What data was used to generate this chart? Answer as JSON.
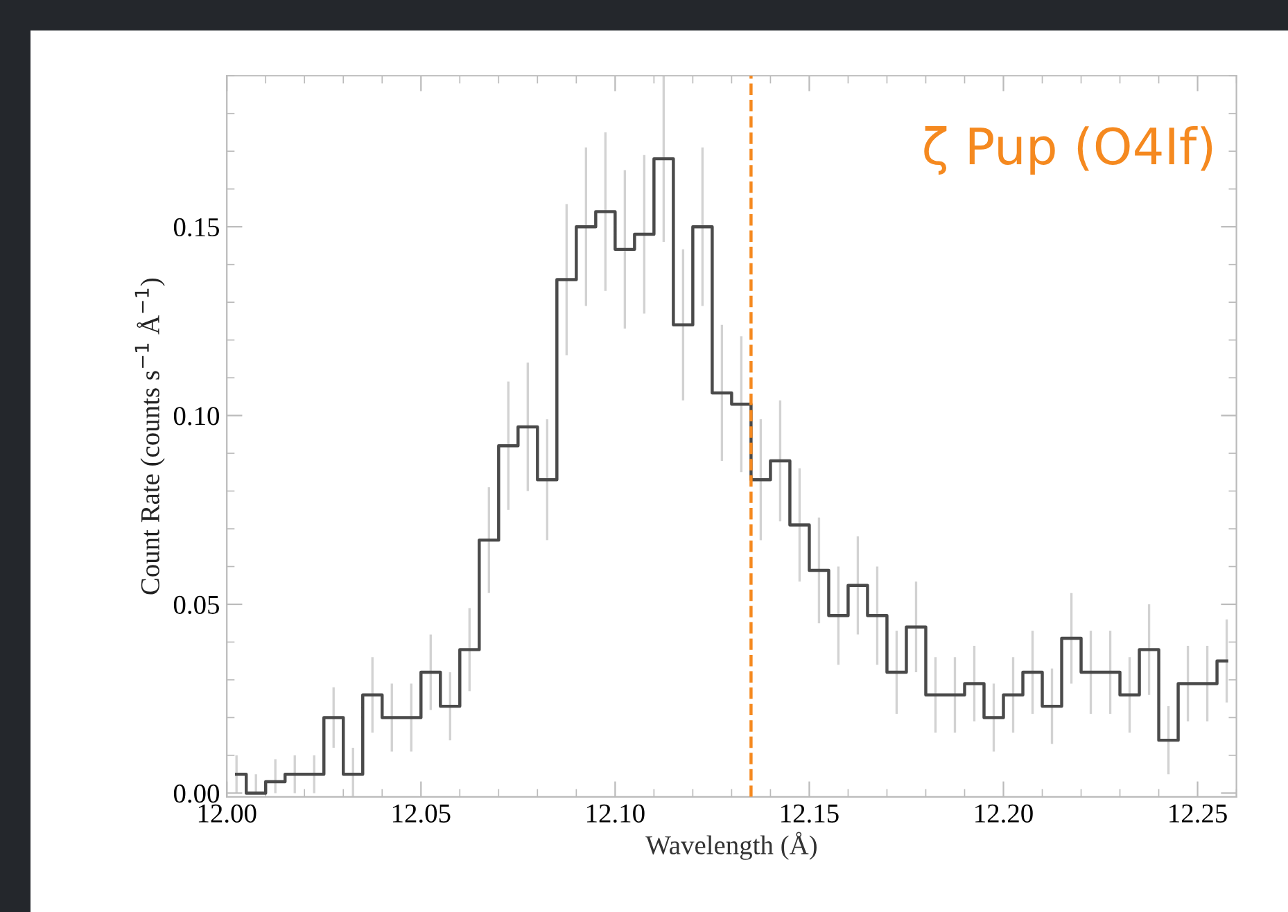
{
  "chart_data": {
    "type": "step",
    "xlabel": "Wavelength (Å)",
    "ylabel": "Count Rate (counts s$^{−1}$ Å$^{−1}$)",
    "x": [
      12.0025,
      12.0075,
      12.0125,
      12.0175,
      12.0225,
      12.0275,
      12.0325,
      12.0375,
      12.0425,
      12.0475,
      12.0525,
      12.0575,
      12.0625,
      12.0675,
      12.0725,
      12.0775,
      12.0825,
      12.0875,
      12.0925,
      12.0975,
      12.1025,
      12.1075,
      12.1125,
      12.1175,
      12.1225,
      12.1275,
      12.1325,
      12.1375,
      12.1425,
      12.1475,
      12.1525,
      12.1575,
      12.1625,
      12.1675,
      12.1725,
      12.1775,
      12.1825,
      12.1875,
      12.1925,
      12.1975,
      12.2025,
      12.2075,
      12.2125,
      12.2175,
      12.2225,
      12.2275,
      12.2325,
      12.2375,
      12.2425,
      12.2475,
      12.2525,
      12.2575
    ],
    "values": [
      0.005,
      0.0,
      0.003,
      0.005,
      0.005,
      0.02,
      0.005,
      0.026,
      0.02,
      0.02,
      0.032,
      0.023,
      0.038,
      0.067,
      0.092,
      0.097,
      0.083,
      0.136,
      0.15,
      0.154,
      0.144,
      0.148,
      0.168,
      0.124,
      0.15,
      0.106,
      0.103,
      0.083,
      0.088,
      0.071,
      0.059,
      0.047,
      0.055,
      0.047,
      0.032,
      0.044,
      0.026,
      0.026,
      0.029,
      0.02,
      0.026,
      0.032,
      0.023,
      0.041,
      0.032,
      0.032,
      0.026,
      0.038,
      0.014,
      0.029,
      0.029,
      0.035
    ],
    "errors": [
      [
        0.0,
        0.01
      ],
      [
        0.0,
        0.005
      ],
      [
        0.0,
        0.009
      ],
      0.005,
      0.005,
      0.008,
      0.007,
      0.01,
      0.009,
      0.009,
      0.01,
      0.009,
      0.011,
      0.014,
      0.017,
      0.017,
      0.016,
      0.02,
      0.021,
      0.021,
      0.021,
      0.021,
      0.022,
      0.02,
      0.021,
      0.018,
      0.018,
      0.016,
      0.016,
      0.015,
      0.014,
      0.013,
      0.013,
      0.013,
      0.011,
      0.012,
      0.01,
      0.01,
      0.01,
      0.009,
      0.01,
      0.011,
      0.01,
      0.012,
      0.011,
      0.011,
      0.01,
      0.012,
      0.009,
      0.01,
      0.01,
      0.011
    ],
    "color": "#4a4a4a",
    "xlim": [
      12.0,
      12.26
    ],
    "xticks": [
      {
        "value": 12.0,
        "label": "12.00"
      },
      {
        "value": 12.05,
        "label": "12.05"
      },
      {
        "value": 12.1,
        "label": "12.10"
      },
      {
        "value": 12.15,
        "label": "12.15"
      },
      {
        "value": 12.2,
        "label": "12.20"
      },
      {
        "value": 12.25,
        "label": "12.25"
      }
    ],
    "ylim": [
      -0.001,
      0.19
    ],
    "yticks": [
      {
        "value": 0,
        "label": "0.00"
      },
      {
        "value": 0.05,
        "label": "0.05"
      },
      {
        "value": 0.1,
        "label": "0.10"
      },
      {
        "value": 0.15,
        "label": "0.15"
      }
    ],
    "ref_lines": [
      {
        "axis": "x",
        "value": 12.135,
        "color": "#f5891f",
        "line_style": "dashed"
      }
    ],
    "annotations": [
      "ζ Pup (O4If)"
    ],
    "grid": false,
    "legend": false
  }
}
